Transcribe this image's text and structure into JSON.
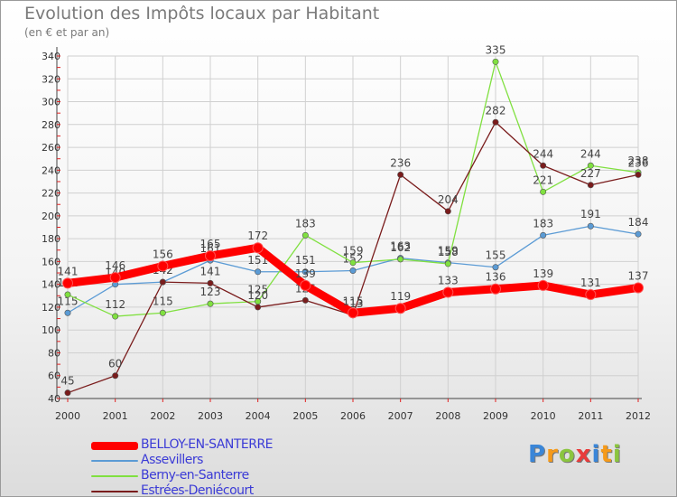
{
  "chart_data": {
    "type": "line",
    "title": "Evolution des Impôts locaux par Habitant",
    "subtitle": "(en € et par an)",
    "x": [
      "2000",
      "2001",
      "2002",
      "2003",
      "2004",
      "2005",
      "2006",
      "2007",
      "2008",
      "2009",
      "2010",
      "2011",
      "2012"
    ],
    "ylim": [
      40,
      340
    ],
    "yticks": [
      40,
      60,
      80,
      100,
      120,
      140,
      160,
      180,
      200,
      220,
      240,
      260,
      280,
      300,
      320,
      340
    ],
    "grid": true,
    "legend_position": "bottom-left",
    "series": [
      {
        "name": "BELLOY-EN-SANTERRE",
        "color": "#ff0000",
        "values": [
          141,
          146,
          156,
          165,
          172,
          139,
          115,
          119,
          133,
          136,
          139,
          131,
          137
        ]
      },
      {
        "name": "Assevillers",
        "color": "#5b9bd5",
        "values": [
          115,
          140,
          142,
          161,
          151,
          151,
          152,
          163,
          159,
          155,
          183,
          191,
          184
        ]
      },
      {
        "name": "Berny-en-Santerre",
        "color": "#80e040",
        "values": [
          131,
          112,
          115,
          123,
          125,
          183,
          159,
          162,
          158,
          335,
          221,
          244,
          238
        ]
      },
      {
        "name": "Estrées-Deniécourt",
        "color": "#7a1c1c",
        "values": [
          45,
          60,
          142,
          141,
          120,
          126,
          113,
          236,
          204,
          282,
          244,
          227,
          236
        ]
      }
    ]
  },
  "logo": {
    "text": "Proxiti",
    "colors": [
      "#3a86d8",
      "#f59a1a",
      "#8bc53f",
      "#e83c3c",
      "#3a86d8",
      "#f59a1a",
      "#8bc53f"
    ]
  }
}
